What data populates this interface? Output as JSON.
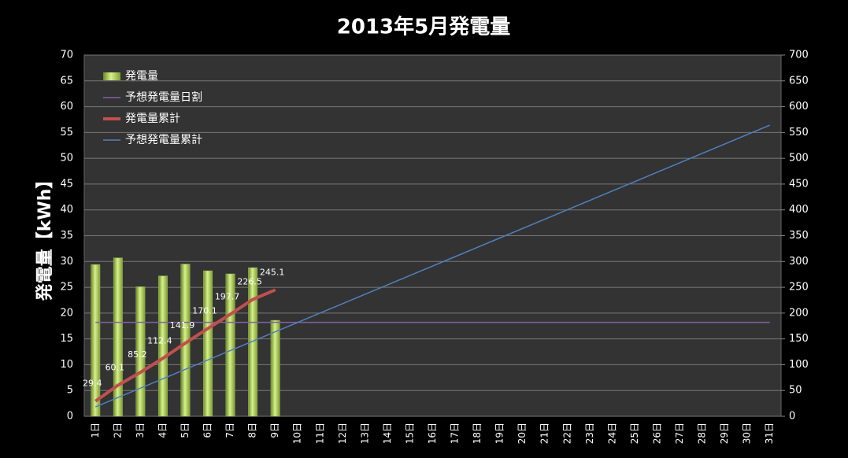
{
  "chart_data": {
    "type": "bar",
    "title": "2013年5月発電量",
    "ylabel": "発電量【kWh】",
    "categories": [
      "1日",
      "2日",
      "3日",
      "4日",
      "5日",
      "6日",
      "7日",
      "8日",
      "9日",
      "10日",
      "11日",
      "12日",
      "13日",
      "14日",
      "15日",
      "16日",
      "17日",
      "18日",
      "19日",
      "20日",
      "21日",
      "22日",
      "23日",
      "24日",
      "25日",
      "26日",
      "27日",
      "28日",
      "29日",
      "30日",
      "31日"
    ],
    "series": [
      {
        "name": "発電量",
        "type": "bar",
        "color": "#9bbb59",
        "values": [
          29.4,
          30.7,
          25.1,
          27.2,
          29.5,
          28.2,
          27.6,
          28.8,
          18.6,
          null,
          null,
          null,
          null,
          null,
          null,
          null,
          null,
          null,
          null,
          null,
          null,
          null,
          null,
          null,
          null,
          null,
          null,
          null,
          null,
          null,
          null
        ]
      },
      {
        "name": "予想発電量日割",
        "type": "line",
        "color": "#8064a2",
        "values": [
          18.2,
          18.2,
          18.2,
          18.2,
          18.2,
          18.2,
          18.2,
          18.2,
          18.2,
          18.2,
          18.2,
          18.2,
          18.2,
          18.2,
          18.2,
          18.2,
          18.2,
          18.2,
          18.2,
          18.2,
          18.2,
          18.2,
          18.2,
          18.2,
          18.2,
          18.2,
          18.2,
          18.2,
          18.2,
          18.2,
          18.2
        ]
      },
      {
        "name": "発電量累計",
        "type": "line",
        "axis": "y2",
        "color": "#c0504d",
        "labels": true,
        "values": [
          29.4,
          60.1,
          85.2,
          112.4,
          141.9,
          170.1,
          197.7,
          226.5,
          245.1,
          null,
          null,
          null,
          null,
          null,
          null,
          null,
          null,
          null,
          null,
          null,
          null,
          null,
          null,
          null,
          null,
          null,
          null,
          null,
          null,
          null,
          null
        ]
      },
      {
        "name": "予想発電量累計",
        "type": "line",
        "axis": "y2",
        "color": "#4f81bd",
        "values": [
          18.2,
          36.4,
          54.6,
          72.8,
          91,
          109.2,
          127.4,
          145.6,
          163.8,
          182,
          200.2,
          218.4,
          236.6,
          254.8,
          273,
          291.2,
          309.4,
          327.6,
          345.8,
          364,
          382.2,
          400.4,
          418.6,
          436.8,
          455,
          473.2,
          491.4,
          509.6,
          527.8,
          546,
          564.2
        ]
      }
    ],
    "ylim": [
      0,
      70
    ],
    "yticks": [
      0,
      5,
      10,
      15,
      20,
      25,
      30,
      35,
      40,
      45,
      50,
      55,
      60,
      65,
      70
    ],
    "y2lim": [
      0,
      700
    ],
    "y2ticks": [
      0,
      50,
      100,
      150,
      200,
      250,
      300,
      350,
      400,
      450,
      500,
      550,
      600,
      650,
      700
    ],
    "grid": true,
    "legend": "upper left"
  }
}
